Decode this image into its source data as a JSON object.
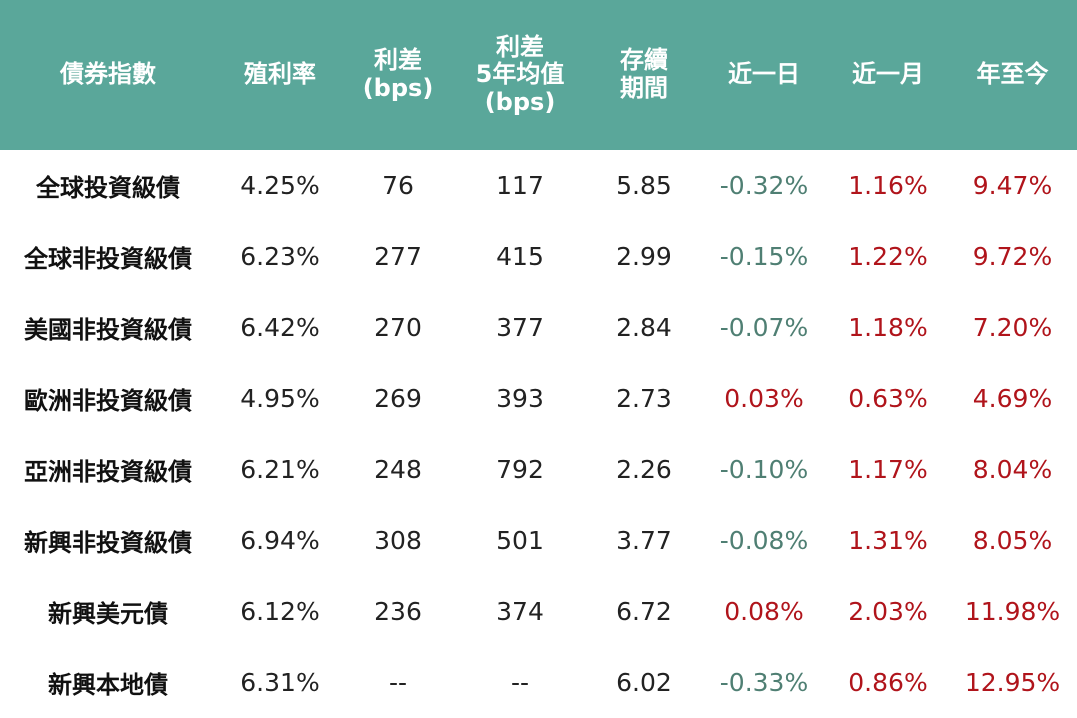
{
  "colors": {
    "header_bg": "#5aa79a",
    "header_text": "#ffffff",
    "negative": "#4f7f73",
    "positive": "#b0141b",
    "body_text": "#222222"
  },
  "chart_data": {
    "type": "table",
    "columns": [
      {
        "key": "name",
        "lines": [
          "債券指數"
        ]
      },
      {
        "key": "yield",
        "lines": [
          "殖利率"
        ]
      },
      {
        "key": "spread",
        "lines": [
          "利差",
          "(bps)"
        ]
      },
      {
        "key": "spread5y",
        "lines": [
          "利差",
          "5年均值",
          "(bps)"
        ]
      },
      {
        "key": "duration",
        "lines": [
          "存續",
          "期間"
        ]
      },
      {
        "key": "d1",
        "lines": [
          "近一日"
        ]
      },
      {
        "key": "m1",
        "lines": [
          "近一月"
        ]
      },
      {
        "key": "ytd",
        "lines": [
          "年至今"
        ]
      }
    ],
    "rows": [
      {
        "name": "全球投資級債",
        "yield": "4.25%",
        "spread": "76",
        "spread5y": "117",
        "duration": "5.85",
        "d1": "-0.32%",
        "m1": "1.16%",
        "ytd": "9.47%"
      },
      {
        "name": "全球非投資級債",
        "yield": "6.23%",
        "spread": "277",
        "spread5y": "415",
        "duration": "2.99",
        "d1": "-0.15%",
        "m1": "1.22%",
        "ytd": "9.72%"
      },
      {
        "name": "美國非投資級債",
        "yield": "6.42%",
        "spread": "270",
        "spread5y": "377",
        "duration": "2.84",
        "d1": "-0.07%",
        "m1": "1.18%",
        "ytd": "7.20%"
      },
      {
        "name": "歐洲非投資級債",
        "yield": "4.95%",
        "spread": "269",
        "spread5y": "393",
        "duration": "2.73",
        "d1": "0.03%",
        "m1": "0.63%",
        "ytd": "4.69%"
      },
      {
        "name": "亞洲非投資級債",
        "yield": "6.21%",
        "spread": "248",
        "spread5y": "792",
        "duration": "2.26",
        "d1": "-0.10%",
        "m1": "1.17%",
        "ytd": "8.04%"
      },
      {
        "name": "新興非投資級債",
        "yield": "6.94%",
        "spread": "308",
        "spread5y": "501",
        "duration": "3.77",
        "d1": "-0.08%",
        "m1": "1.31%",
        "ytd": "8.05%"
      },
      {
        "name": "新興美元債",
        "yield": "6.12%",
        "spread": "236",
        "spread5y": "374",
        "duration": "6.72",
        "d1": "0.08%",
        "m1": "2.03%",
        "ytd": "11.98%"
      },
      {
        "name": "新興本地債",
        "yield": "6.31%",
        "spread": "--",
        "spread5y": "--",
        "duration": "6.02",
        "d1": "-0.33%",
        "m1": "0.86%",
        "ytd": "12.95%"
      }
    ]
  }
}
